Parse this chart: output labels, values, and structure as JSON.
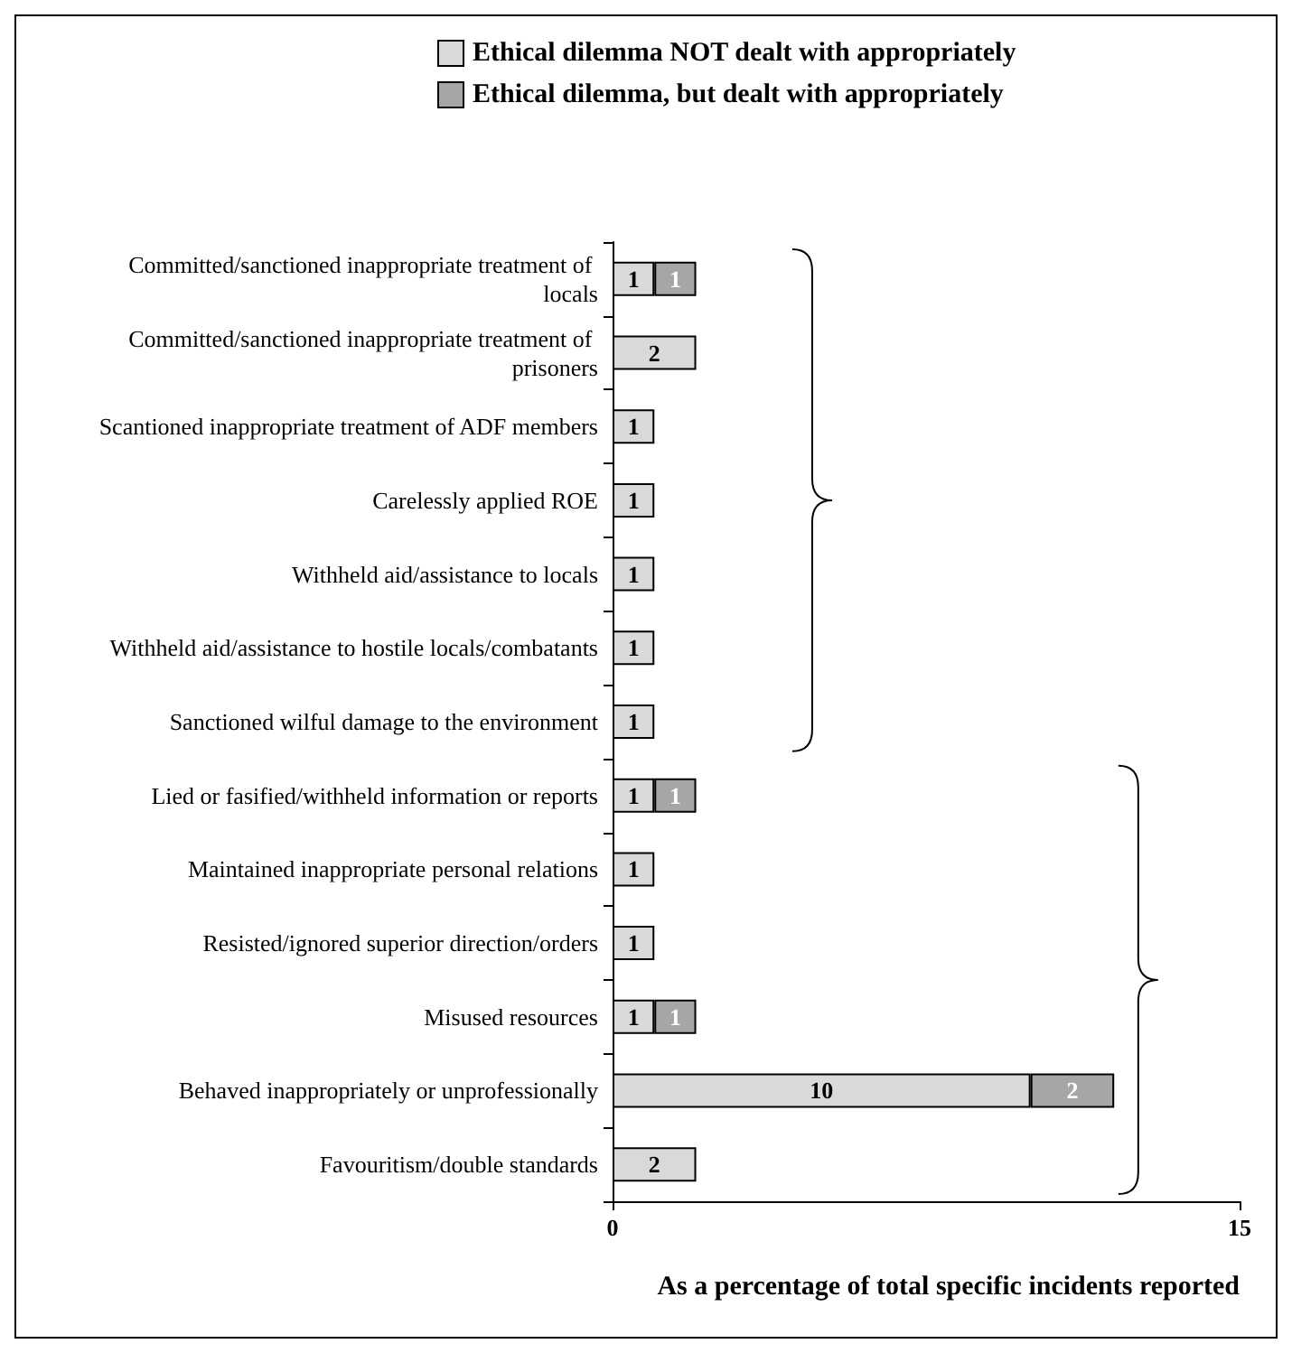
{
  "chart_data": {
    "type": "bar",
    "orientation": "horizontal",
    "stacked": true,
    "categories": [
      "Committed/sanctioned inappropriate treatment of locals",
      "Committed/sanctioned inappropriate treatment of prisoners",
      "Scantioned inappropriate treatment of ADF members",
      "Carelessly applied ROE",
      "Withheld aid/assistance to locals",
      "Withheld aid/assistance to hostile locals/combatants",
      "Sanctioned wilful damage to the environment",
      "Lied or fasified/withheld information or reports",
      "Maintained inappropriate personal relations",
      "Resisted/ignored superior direction/orders",
      "Misused resources",
      "Behaved inappropriately or unprofessionally",
      "Favouritism/double standards"
    ],
    "series": [
      {
        "name": "Ethical dilemma NOT dealt with appropriately",
        "color": "#d9d9d9",
        "values": [
          1,
          2,
          1,
          1,
          1,
          1,
          1,
          1,
          1,
          1,
          1,
          10,
          2
        ]
      },
      {
        "name": "Ethical dilemma, but dealt with appropriately",
        "color": "#a6a6a6",
        "values": [
          1,
          null,
          null,
          null,
          null,
          null,
          null,
          1,
          null,
          null,
          1,
          2,
          null
        ]
      }
    ],
    "xlim": [
      0,
      15
    ],
    "xticks": [
      0,
      15
    ],
    "xlabel": "As a percentage of total specific incidents reported",
    "data_labels": true,
    "legend": "top",
    "grid": false
  }
}
